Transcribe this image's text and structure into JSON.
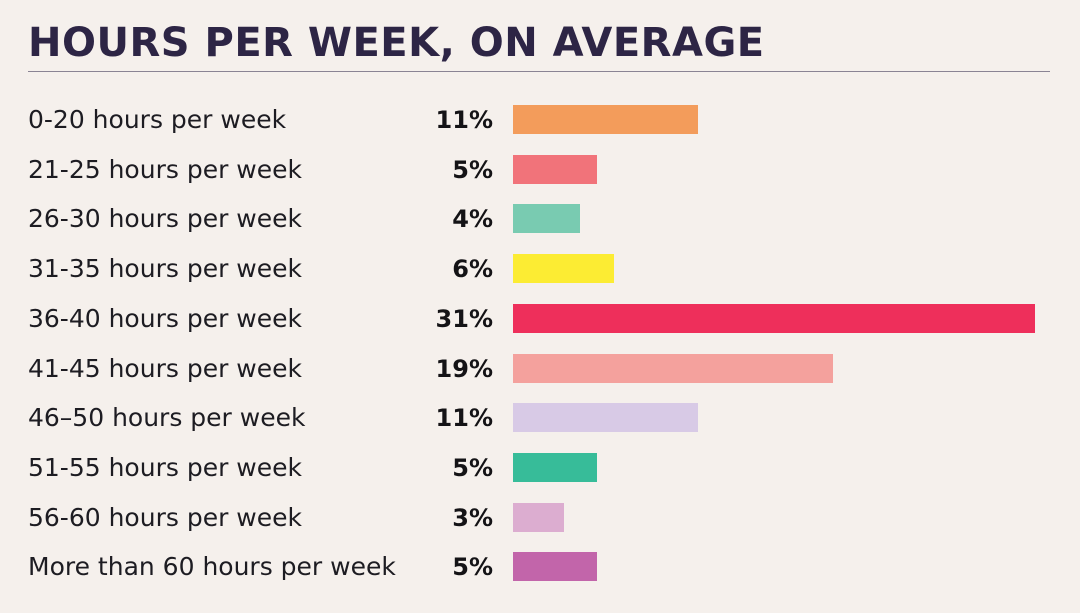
{
  "title": "HOURS PER WEEK, ON AVERAGE",
  "chart_data": {
    "type": "bar",
    "orientation": "horizontal",
    "title": "HOURS PER WEEK, ON AVERAGE",
    "categories": [
      "0-20 hours per week",
      "21-25 hours per week",
      "26-30 hours per week",
      "31-35 hours per week",
      "36-40 hours per week",
      "41-45 hours per week",
      "46–50 hours per week",
      "51-55 hours per week",
      "56-60 hours per week",
      "More than 60 hours per week"
    ],
    "values": [
      11,
      5,
      4,
      6,
      31,
      19,
      11,
      5,
      3,
      5
    ],
    "value_labels": [
      "11%",
      "5%",
      "4%",
      "6%",
      "31%",
      "19%",
      "11%",
      "5%",
      "3%",
      "5%"
    ],
    "unit": "%",
    "colors": [
      "#f39c5b",
      "#f1737a",
      "#79cbb1",
      "#fcec33",
      "#ee2f5b",
      "#f4a19d",
      "#d8cae6",
      "#37bc99",
      "#dcadd0",
      "#c265aa"
    ],
    "grid": false,
    "legend": "none"
  }
}
